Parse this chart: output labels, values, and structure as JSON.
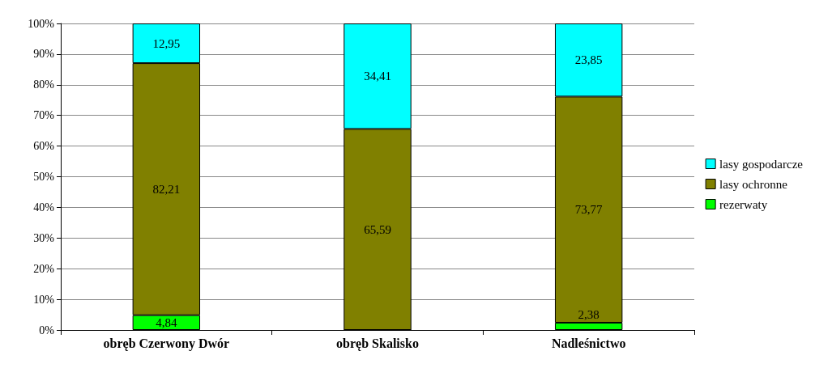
{
  "chart_data": {
    "type": "bar",
    "stacked": true,
    "categories": [
      "obręb Czerwony Dwór",
      "obręb Skalisko",
      "Nadleśnictwo"
    ],
    "series": [
      {
        "name": "rezerwaty",
        "color": "#00ff00",
        "values": [
          4.84,
          0,
          2.38
        ],
        "value_labels": [
          "4,84",
          null,
          "2,38"
        ]
      },
      {
        "name": "lasy ochronne",
        "color": "#808000",
        "values": [
          82.21,
          65.59,
          73.77
        ],
        "value_labels": [
          "82,21",
          "65,59",
          "73,77"
        ]
      },
      {
        "name": "lasy gospodarcze",
        "color": "#00ffff",
        "values": [
          12.95,
          34.41,
          23.85
        ],
        "value_labels": [
          "12,95",
          "34,41",
          "23,85"
        ]
      }
    ],
    "ylim": [
      0,
      100
    ],
    "yticks": [
      {
        "value": 0,
        "label": "0%"
      },
      {
        "value": 10,
        "label": "10%"
      },
      {
        "value": 20,
        "label": "20%"
      },
      {
        "value": 30,
        "label": "30%"
      },
      {
        "value": 40,
        "label": "40%"
      },
      {
        "value": 50,
        "label": "50%"
      },
      {
        "value": 60,
        "label": "60%"
      },
      {
        "value": 70,
        "label": "70%"
      },
      {
        "value": 80,
        "label": "80%"
      },
      {
        "value": 90,
        "label": "90%"
      },
      {
        "value": 100,
        "label": "100%"
      }
    ],
    "grid": "y",
    "legend": "right"
  }
}
